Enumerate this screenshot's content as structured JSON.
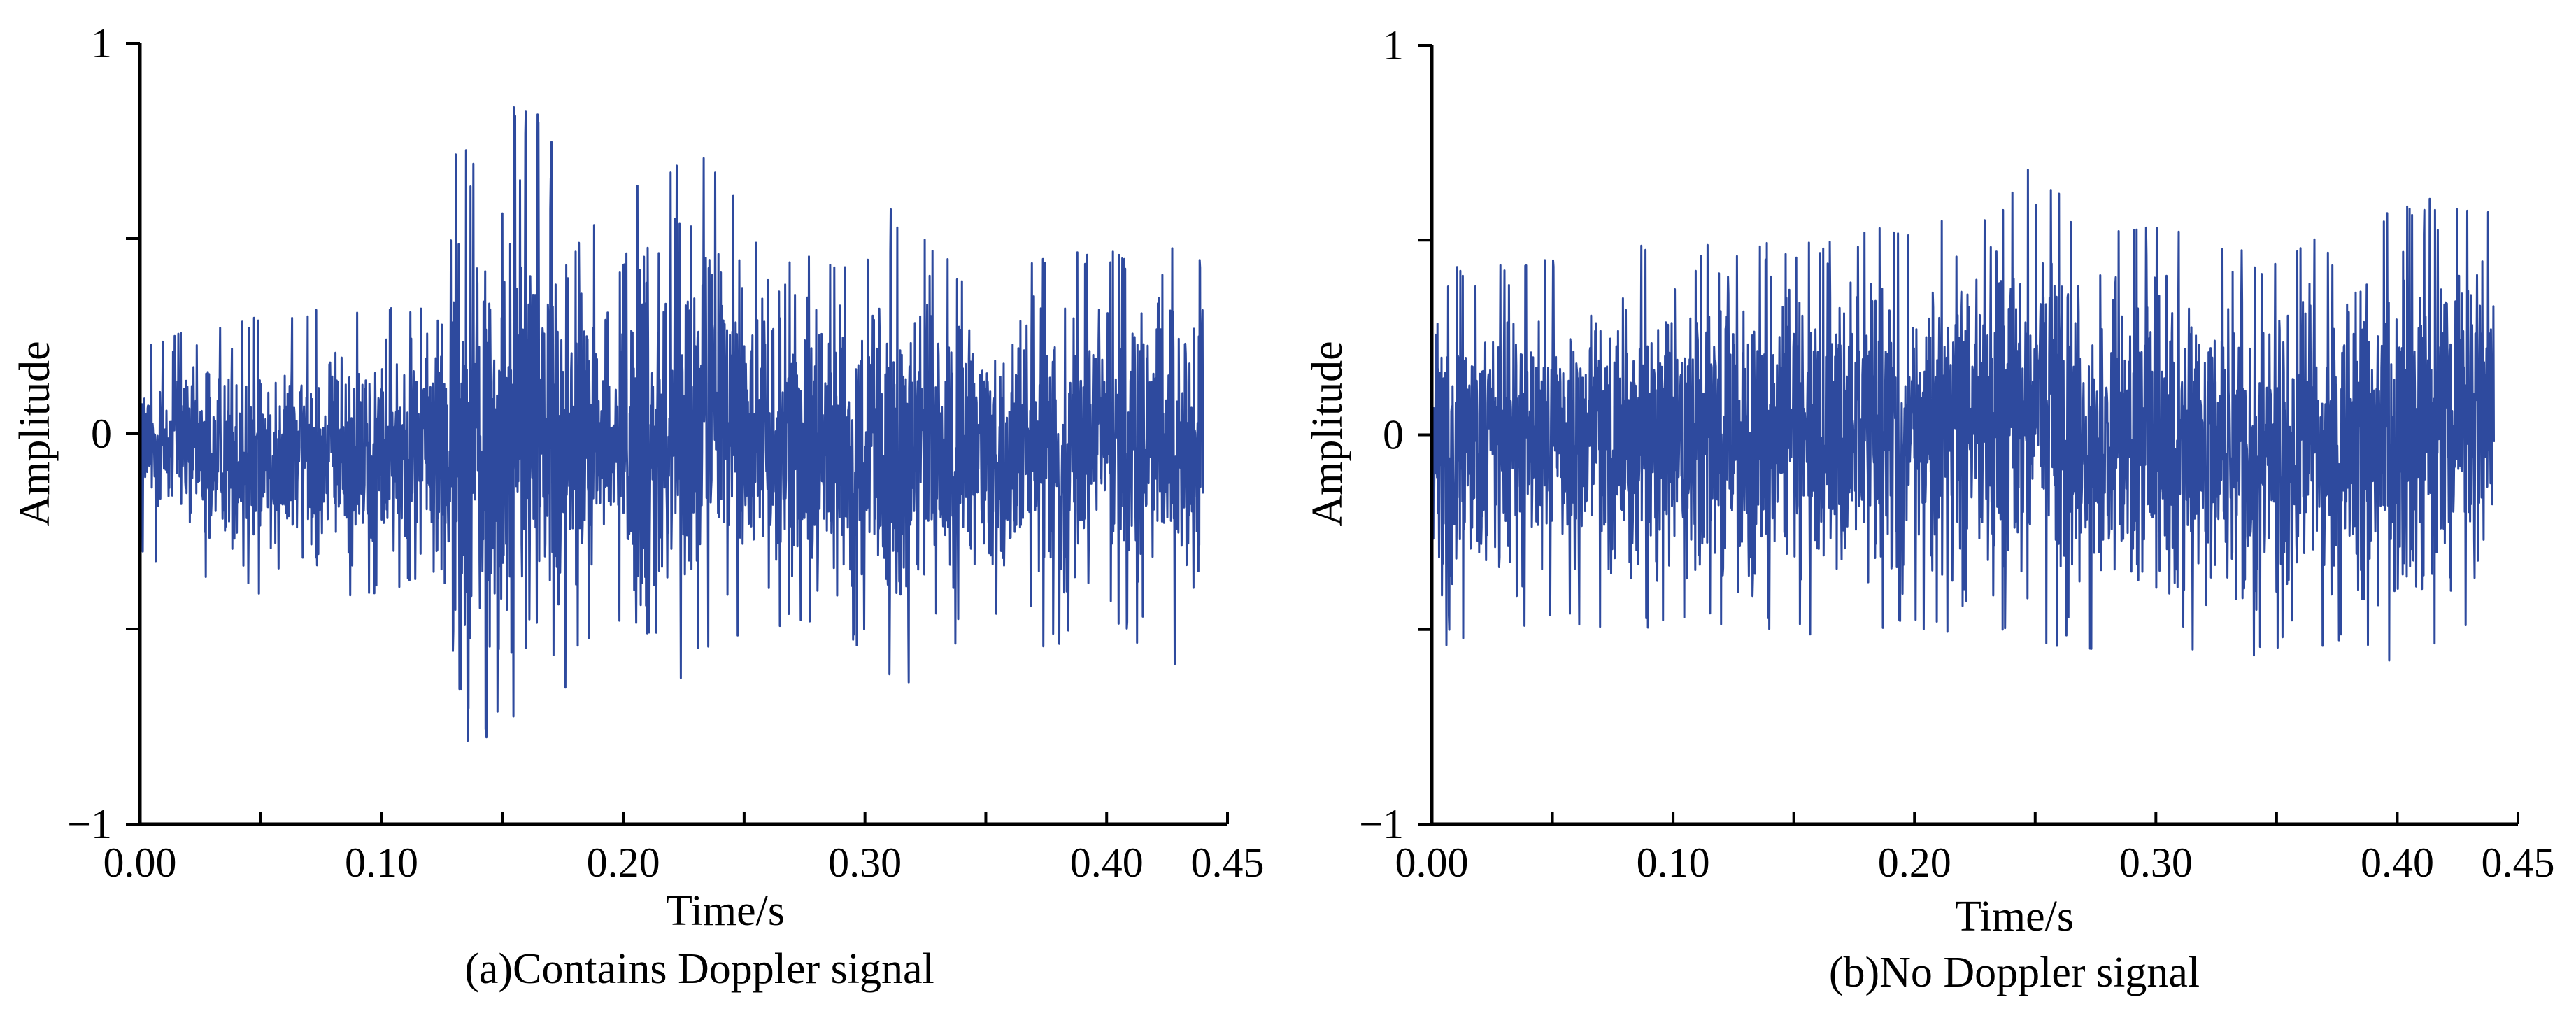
{
  "series_color": "#2e4a9e",
  "chart_data": [
    {
      "type": "line",
      "caption": "(a)Contains Doppler signal",
      "xlabel": "Time/s",
      "ylabel": "Amplitude",
      "xlim": [
        0,
        0.45
      ],
      "ylim": [
        -1,
        1
      ],
      "x_ticks": [
        0.0,
        0.05,
        0.1,
        0.15,
        0.2,
        0.25,
        0.3,
        0.35,
        0.4,
        0.45
      ],
      "x_tick_labels": [
        "0.00",
        "0.10",
        "0.20",
        "0.30",
        "0.40",
        "0.45"
      ],
      "x_tick_label_values": [
        0.0,
        0.1,
        0.2,
        0.3,
        0.4,
        0.45
      ],
      "y_ticks": [
        -1,
        -0.5,
        0,
        0.5,
        1
      ],
      "y_tick_labels": [
        "−1",
        "0",
        "1"
      ],
      "y_tick_label_values": [
        -1,
        0,
        1
      ],
      "x_end": 0.44,
      "envelope": {
        "x": [
          0.0,
          0.02,
          0.05,
          0.09,
          0.12,
          0.13,
          0.14,
          0.155,
          0.165,
          0.18,
          0.2,
          0.21,
          0.22,
          0.24,
          0.26,
          0.28,
          0.3,
          0.31,
          0.32,
          0.34,
          0.37,
          0.4,
          0.42,
          0.44
        ],
        "upper": [
          0.25,
          0.28,
          0.3,
          0.33,
          0.35,
          0.72,
          0.75,
          0.85,
          0.85,
          0.6,
          0.45,
          0.88,
          0.7,
          0.72,
          0.5,
          0.45,
          0.45,
          0.62,
          0.55,
          0.42,
          0.45,
          0.48,
          0.5,
          0.58
        ],
        "lower": [
          -0.32,
          -0.35,
          -0.42,
          -0.42,
          -0.4,
          -0.92,
          -0.8,
          -0.92,
          -0.8,
          -0.6,
          -0.5,
          -0.85,
          -0.65,
          -0.55,
          -0.5,
          -0.52,
          -0.55,
          -0.85,
          -0.62,
          -0.55,
          -0.55,
          -0.52,
          -0.55,
          -0.65
        ]
      }
    },
    {
      "type": "line",
      "caption": "(b)No Doppler signal",
      "xlabel": "Time/s",
      "ylabel": "Amplitude",
      "xlim": [
        0,
        0.45
      ],
      "ylim": [
        -1,
        1
      ],
      "x_ticks": [
        0.0,
        0.05,
        0.1,
        0.15,
        0.2,
        0.25,
        0.3,
        0.35,
        0.4,
        0.45
      ],
      "x_tick_labels": [
        "0.00",
        "0.10",
        "0.20",
        "0.30",
        "0.40",
        "0.45"
      ],
      "x_tick_label_values": [
        0.0,
        0.1,
        0.2,
        0.3,
        0.4,
        0.45
      ],
      "y_ticks": [
        -1,
        -0.5,
        0,
        0.5,
        1
      ],
      "y_tick_labels": [
        "−1",
        "0",
        "1"
      ],
      "y_tick_label_values": [
        -1,
        0,
        1
      ],
      "x_end": 0.44,
      "envelope": {
        "x": [
          0.0,
          0.05,
          0.1,
          0.15,
          0.2,
          0.22,
          0.25,
          0.27,
          0.3,
          0.33,
          0.35,
          0.38,
          0.4,
          0.42,
          0.44
        ],
        "upper": [
          0.42,
          0.48,
          0.5,
          0.5,
          0.55,
          0.55,
          0.7,
          0.55,
          0.55,
          0.5,
          0.45,
          0.55,
          0.6,
          0.62,
          0.62
        ],
        "lower": [
          -0.55,
          -0.5,
          -0.5,
          -0.52,
          -0.5,
          -0.55,
          -0.55,
          -0.55,
          -0.55,
          -0.65,
          -0.55,
          -0.55,
          -0.62,
          -0.55,
          -0.5
        ]
      }
    }
  ]
}
